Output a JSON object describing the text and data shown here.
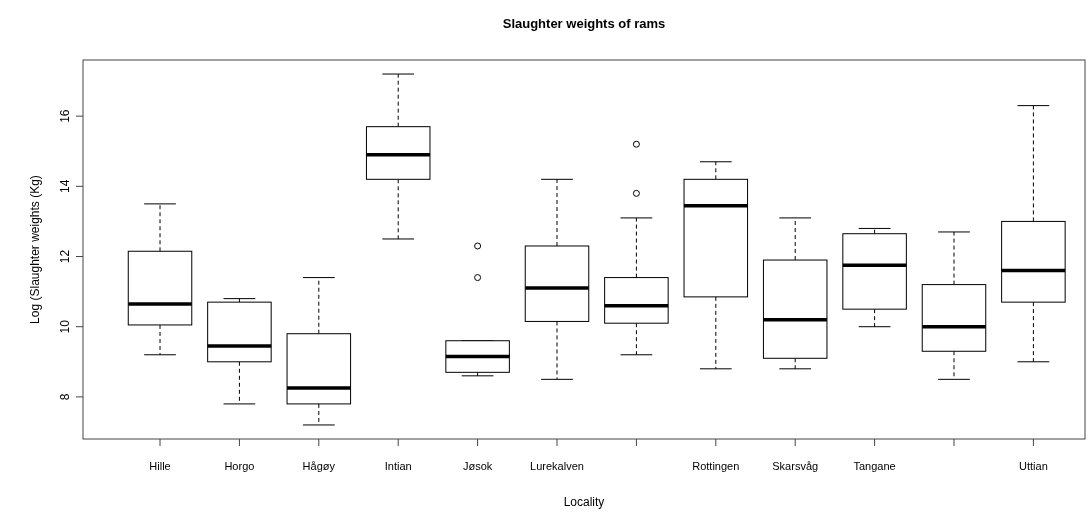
{
  "chart_data": {
    "type": "box",
    "title": "Slaughter weights of rams",
    "xlabel": "Locality",
    "ylabel": "Log (Slaughter weights (Kg)",
    "categories": [
      "Hille",
      "Horgo",
      "Hågøy",
      "Intian",
      "Jøsok",
      "Lurekalven",
      null,
      "Rottingen",
      "Skarsvåg",
      "Tangane",
      null,
      "Uttian"
    ],
    "boxes": [
      {
        "low": 9.2,
        "q1": 10.05,
        "median": 10.65,
        "q3": 12.15,
        "high": 13.5
      },
      {
        "low": 7.8,
        "q1": 9.0,
        "median": 9.45,
        "q3": 10.7,
        "high": 10.8
      },
      {
        "low": 7.2,
        "q1": 7.8,
        "median": 8.25,
        "q3": 9.8,
        "high": 11.4
      },
      {
        "low": 12.5,
        "q1": 14.2,
        "median": 14.9,
        "q3": 15.7,
        "high": 17.2
      },
      {
        "low": 8.6,
        "q1": 8.7,
        "median": 9.15,
        "q3": 9.6,
        "high": 9.6,
        "outliers": [
          11.4,
          12.3
        ]
      },
      {
        "low": 8.5,
        "q1": 10.15,
        "median": 11.1,
        "q3": 12.3,
        "high": 14.2
      },
      {
        "low": 9.2,
        "q1": 10.1,
        "median": 10.6,
        "q3": 11.4,
        "high": 13.1,
        "outliers": [
          13.8,
          15.2
        ]
      },
      {
        "low": 8.8,
        "q1": 10.85,
        "median": 13.45,
        "q3": 14.2,
        "high": 14.7
      },
      {
        "low": 8.8,
        "q1": 9.1,
        "median": 10.2,
        "q3": 11.9,
        "high": 13.1
      },
      {
        "low": 10.0,
        "q1": 10.5,
        "median": 11.75,
        "q3": 12.65,
        "high": 12.8
      },
      {
        "low": 8.5,
        "q1": 9.3,
        "median": 10.0,
        "q3": 11.2,
        "high": 12.7
      },
      {
        "low": 9.0,
        "q1": 10.7,
        "median": 11.6,
        "q3": 13.0,
        "high": 16.3
      }
    ],
    "ylim": [
      6.8,
      17.6
    ],
    "yticks": [
      8,
      10,
      12,
      14,
      16
    ],
    "grid": false
  }
}
